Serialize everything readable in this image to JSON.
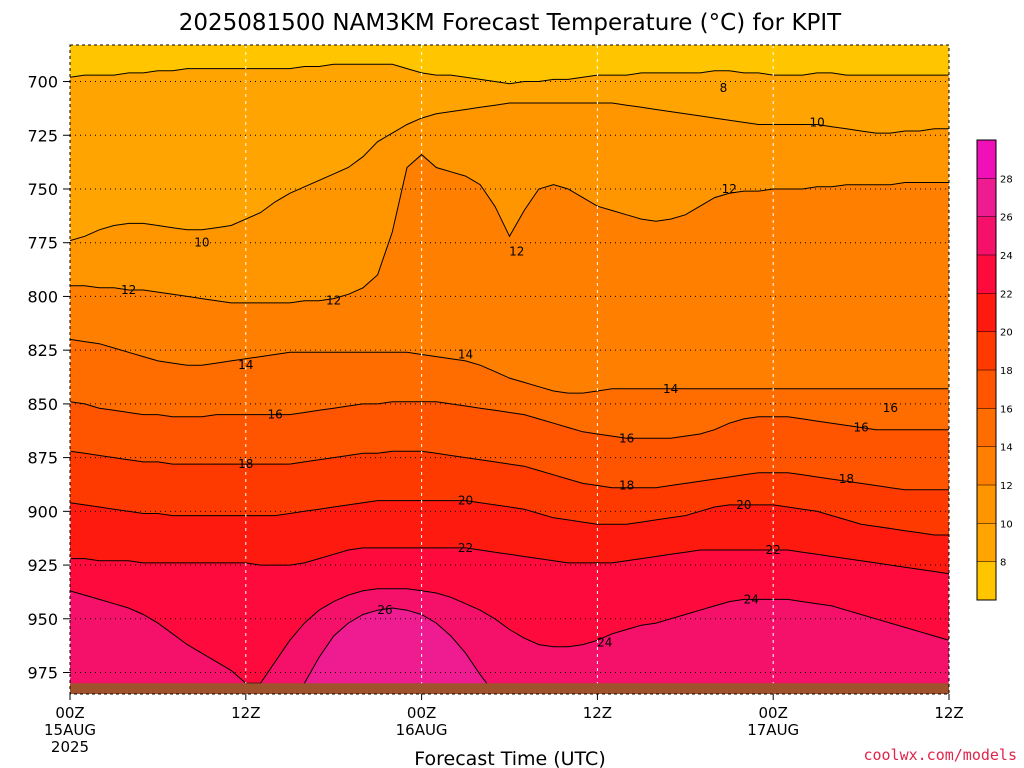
{
  "chart_data": {
    "type": "contour",
    "title": "2025081500 NAM3KM Forecast Temperature (°C) for KPIT",
    "xlabel": "Forecast Time (UTC)",
    "ylabel": "",
    "y_axis": {
      "ticks": [
        700,
        725,
        750,
        775,
        800,
        825,
        850,
        875,
        900,
        925,
        950,
        975
      ],
      "range": [
        683,
        985
      ],
      "inverted": true
    },
    "x_axis": {
      "ticks": [
        {
          "hour": 0,
          "line1": "00Z",
          "line2": "15AUG",
          "line3": "2025"
        },
        {
          "hour": 12,
          "line1": "12Z",
          "line2": "",
          "line3": ""
        },
        {
          "hour": 24,
          "line1": "00Z",
          "line2": "16AUG",
          "line3": ""
        },
        {
          "hour": 36,
          "line1": "12Z",
          "line2": "",
          "line3": ""
        },
        {
          "hour": 48,
          "line1": "00Z",
          "line2": "17AUG",
          "line3": ""
        },
        {
          "hour": 60,
          "line1": "12Z",
          "line2": "",
          "line3": ""
        }
      ],
      "range": [
        0,
        60
      ]
    },
    "colorbar": {
      "ticks": [
        8,
        10,
        12,
        14,
        16,
        18,
        20,
        22,
        24,
        26,
        28
      ],
      "colors": [
        "#ffc600",
        "#ffa400",
        "#ff9600",
        "#ff8000",
        "#ff6c00",
        "#ff5400",
        "#ff3a00",
        "#ff1a10",
        "#ff0a3c",
        "#f5106a",
        "#ee1c90",
        "#ef10b8"
      ]
    },
    "series": [
      {
        "level": 8,
        "label_pos": [
          {
            "hour": 44.6,
            "p": 703
          }
        ],
        "p": [
          698,
          697,
          697,
          697,
          696,
          696,
          695,
          695,
          694,
          694,
          694,
          694,
          694,
          694,
          694,
          694,
          693,
          693,
          692,
          692,
          692,
          692,
          692,
          694,
          696,
          697,
          697,
          698,
          699,
          700,
          701,
          700,
          700,
          699,
          699,
          698,
          697,
          697,
          697,
          696,
          696,
          696,
          696,
          696,
          695,
          695,
          696,
          696,
          697,
          697,
          697,
          696,
          696,
          697,
          697,
          697,
          697,
          697,
          697,
          697,
          697
        ]
      },
      {
        "level": 10,
        "label_pos": [
          {
            "hour": 9.0,
            "p": 775
          },
          {
            "hour": 51.0,
            "p": 719
          }
        ],
        "p": [
          774,
          772,
          769,
          767,
          766,
          766,
          767,
          768,
          769,
          769,
          768,
          767,
          764,
          761,
          756,
          752,
          749,
          746,
          743,
          740,
          735,
          728,
          724,
          720,
          717,
          715,
          714,
          713,
          712,
          711,
          710,
          710,
          710,
          710,
          710,
          710,
          710,
          710,
          711,
          712,
          713,
          714,
          715,
          716,
          717,
          718,
          719,
          720,
          720,
          720,
          720,
          720,
          721,
          722,
          723,
          724,
          724,
          723,
          723,
          722,
          722
        ]
      },
      {
        "level": 12,
        "label_pos": [
          {
            "hour": 4.0,
            "p": 797
          },
          {
            "hour": 18.0,
            "p": 802
          },
          {
            "hour": 30.5,
            "p": 779
          },
          {
            "hour": 45.0,
            "p": 750
          }
        ],
        "p": [
          795,
          795,
          796,
          796,
          797,
          797,
          798,
          799,
          800,
          801,
          802,
          803,
          803,
          803,
          803,
          803,
          802,
          802,
          801,
          799,
          796,
          790,
          770,
          740,
          734,
          740,
          742,
          744,
          748,
          758,
          772,
          760,
          750,
          748,
          750,
          754,
          758,
          760,
          762,
          764,
          765,
          764,
          762,
          758,
          754,
          752,
          751,
          751,
          750,
          750,
          750,
          749,
          749,
          748,
          748,
          748,
          748,
          747,
          747,
          747,
          747
        ]
      },
      {
        "level": 14,
        "label_pos": [
          {
            "hour": 12.0,
            "p": 832
          },
          {
            "hour": 27.0,
            "p": 827
          },
          {
            "hour": 41.0,
            "p": 843
          }
        ],
        "p": [
          820,
          821,
          822,
          824,
          826,
          828,
          830,
          831,
          832,
          832,
          831,
          830,
          829,
          828,
          827,
          826,
          826,
          826,
          826,
          826,
          826,
          826,
          826,
          826,
          827,
          828,
          829,
          830,
          832,
          835,
          838,
          840,
          842,
          844,
          845,
          845,
          844,
          843,
          843,
          843,
          843,
          843,
          843,
          843,
          843,
          843,
          843,
          843,
          843,
          843,
          843,
          843,
          843,
          843,
          843,
          843,
          843,
          843,
          843,
          843,
          843
        ]
      },
      {
        "level": 16,
        "label_pos": [
          {
            "hour": 14.0,
            "p": 855
          },
          {
            "hour": 38.0,
            "p": 866
          },
          {
            "hour": 54.0,
            "p": 861
          },
          {
            "hour": 56.0,
            "p": 852
          }
        ],
        "p": [
          849,
          850,
          852,
          853,
          854,
          855,
          855,
          856,
          856,
          856,
          855,
          855,
          855,
          855,
          855,
          855,
          854,
          853,
          852,
          851,
          850,
          850,
          849,
          849,
          849,
          849,
          850,
          851,
          852,
          853,
          854,
          855,
          857,
          859,
          861,
          863,
          864,
          865,
          866,
          866,
          866,
          866,
          865,
          864,
          862,
          859,
          857,
          856,
          856,
          856,
          857,
          858,
          859,
          860,
          861,
          862,
          862,
          862,
          862,
          862,
          862
        ]
      },
      {
        "level": 18,
        "label_pos": [
          {
            "hour": 12.0,
            "p": 878
          },
          {
            "hour": 38.0,
            "p": 888
          },
          {
            "hour": 53.0,
            "p": 885
          }
        ],
        "p": [
          872,
          873,
          874,
          875,
          876,
          877,
          877,
          878,
          878,
          878,
          878,
          878,
          878,
          878,
          878,
          878,
          877,
          876,
          875,
          874,
          873,
          873,
          872,
          872,
          872,
          873,
          874,
          875,
          876,
          877,
          878,
          879,
          881,
          883,
          885,
          887,
          888,
          889,
          889,
          889,
          889,
          888,
          887,
          886,
          885,
          884,
          883,
          882,
          882,
          882,
          883,
          884,
          885,
          886,
          887,
          888,
          889,
          890,
          890,
          890,
          890
        ]
      },
      {
        "level": 20,
        "label_pos": [
          {
            "hour": 27.0,
            "p": 895
          },
          {
            "hour": 46.0,
            "p": 897
          }
        ],
        "p": [
          896,
          897,
          898,
          899,
          900,
          901,
          901,
          902,
          902,
          902,
          902,
          902,
          902,
          902,
          902,
          901,
          900,
          899,
          898,
          897,
          896,
          895,
          895,
          895,
          895,
          895,
          895,
          895,
          896,
          897,
          898,
          899,
          901,
          903,
          904,
          905,
          906,
          906,
          906,
          905,
          904,
          903,
          902,
          900,
          898,
          897,
          897,
          897,
          897,
          898,
          899,
          900,
          902,
          904,
          906,
          907,
          908,
          909,
          910,
          911,
          911
        ]
      },
      {
        "level": 22,
        "label_pos": [
          {
            "hour": 27.0,
            "p": 917
          },
          {
            "hour": 48.0,
            "p": 918
          }
        ],
        "p": [
          922,
          922,
          923,
          923,
          923,
          924,
          924,
          924,
          924,
          924,
          924,
          924,
          924,
          925,
          925,
          925,
          924,
          922,
          920,
          918,
          917,
          917,
          917,
          917,
          917,
          917,
          917,
          917,
          918,
          919,
          920,
          921,
          922,
          923,
          924,
          924,
          924,
          924,
          923,
          922,
          921,
          920,
          919,
          918,
          918,
          918,
          918,
          918,
          918,
          918,
          919,
          920,
          921,
          922,
          923,
          924,
          925,
          926,
          927,
          928,
          929
        ]
      },
      {
        "level": 24,
        "label_pos": [
          {
            "hour": 36.5,
            "p": 961
          },
          {
            "hour": 46.5,
            "p": 941
          }
        ],
        "p": [
          937,
          939,
          941,
          943,
          945,
          948,
          952,
          957,
          962,
          966,
          970,
          974,
          980,
          980,
          970,
          960,
          952,
          946,
          942,
          939,
          937,
          936,
          936,
          936,
          937,
          938,
          940,
          943,
          946,
          950,
          955,
          959,
          962,
          963,
          963,
          962,
          960,
          957,
          955,
          953,
          952,
          950,
          948,
          946,
          944,
          942,
          941,
          941,
          941,
          941,
          942,
          943,
          944,
          946,
          948,
          950,
          952,
          954,
          956,
          958,
          960
        ]
      },
      {
        "level": 26,
        "label_pos": [
          {
            "hour": 21.5,
            "p": 946
          }
        ],
        "p": [
          985,
          985,
          985,
          985,
          985,
          985,
          985,
          985,
          985,
          985,
          985,
          985,
          985,
          985,
          985,
          985,
          980,
          968,
          958,
          952,
          948,
          946,
          945,
          946,
          948,
          952,
          958,
          966,
          976,
          985,
          985,
          985,
          985,
          985,
          985,
          985,
          985,
          985,
          985,
          985,
          985,
          985,
          985,
          985,
          985,
          985,
          985,
          985,
          985,
          985,
          985,
          985,
          985,
          985,
          985,
          985,
          985,
          985,
          985,
          985,
          985
        ]
      }
    ],
    "surface_color": "#a0522d",
    "grid": true
  },
  "credit": "coolwx.com/models"
}
